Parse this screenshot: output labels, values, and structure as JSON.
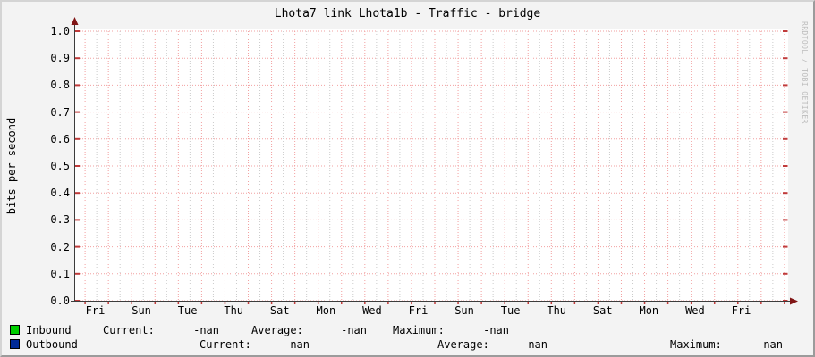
{
  "watermark": "RRDTOOL / TOBI OETIKER",
  "chart_data": {
    "type": "area",
    "title": "Lhota7 link Lhota1b - Traffic - bridge",
    "xlabel": "",
    "ylabel": "bits per second",
    "ylim": [
      0.0,
      1.0
    ],
    "y_tick_labels": [
      "1.0",
      "0.9",
      "0.8",
      "0.7",
      "0.6",
      "0.5",
      "0.4",
      "0.3",
      "0.2",
      "0.1",
      "0.0"
    ],
    "x_tick_labels": [
      "Fri",
      "Sun",
      "Tue",
      "Thu",
      "Sat",
      "Mon",
      "Wed",
      "Fri",
      "Sun",
      "Tue",
      "Thu",
      "Sat",
      "Mon",
      "Wed",
      "Fri"
    ],
    "grid": true,
    "legend_position": "bottom",
    "series": [
      {
        "name": "Inbound",
        "color": "#00cf00",
        "values": [],
        "current": "-nan",
        "average": "-nan",
        "maximum": "-nan"
      },
      {
        "name": "Outbound",
        "color": "#002a97",
        "values": [],
        "current": "-nan",
        "average": "-nan",
        "maximum": "-nan"
      }
    ],
    "colors": {
      "plot_background": "#ffffff",
      "major_grid": "#f2a0a0",
      "minor_grid": "#cbcbcb",
      "axis": "#3c3c3c",
      "arrow": "#801515",
      "edge_tick": "#c03a3a"
    }
  },
  "legend": {
    "rows": [
      {
        "name": "Inbound",
        "swatch": "#00cf00",
        "current_label": "Current:",
        "current_value": "-nan",
        "average_label": "Average:",
        "average_value": "-nan",
        "maximum_label": "Maximum:",
        "maximum_value": "-nan"
      },
      {
        "name": "Outbound",
        "swatch": "#002a97",
        "current_label": "Current:",
        "current_value": "-nan",
        "average_label": "Average:",
        "average_value": "-nan",
        "maximum_label": "Maximum:",
        "maximum_value": "-nan"
      }
    ]
  }
}
